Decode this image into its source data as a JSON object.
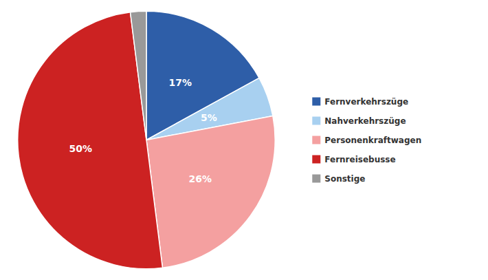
{
  "chart_data": {
    "type": "pie",
    "categories": [
      "Fernverkehrszüge",
      "Nahverkehrszüge",
      "Personenkraftwagen",
      "Fernreisebusse",
      "Sonstige"
    ],
    "values": [
      17,
      5,
      26,
      50,
      2
    ],
    "value_labels": [
      "17%",
      "5%",
      "26%",
      "50%",
      null
    ],
    "colors": [
      "#2E5EA8",
      "#A8D0F0",
      "#F4A0A0",
      "#CC2222",
      "#999999"
    ],
    "data_labels": true,
    "legend": "right"
  }
}
